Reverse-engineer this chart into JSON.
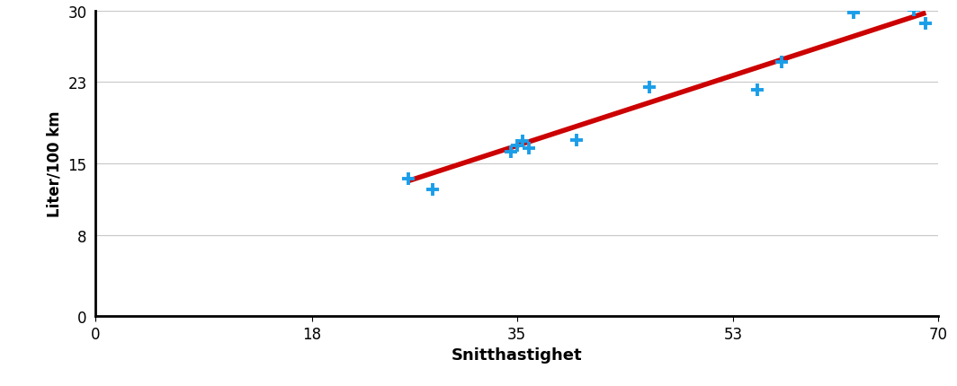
{
  "x_data": [
    26,
    28,
    34.5,
    35,
    35.5,
    36,
    40,
    46,
    55,
    57,
    63,
    68,
    69
  ],
  "y_data": [
    13.5,
    12.5,
    16.2,
    16.8,
    17.2,
    16.5,
    17.3,
    22.5,
    22.2,
    25.0,
    29.8,
    30.1,
    28.8
  ],
  "trend_x": [
    26,
    69
  ],
  "trend_y": [
    13.3,
    29.8
  ],
  "xlabel": "Snitthastighet",
  "ylabel": "Liter/100 km",
  "xlim": [
    0,
    70
  ],
  "ylim": [
    0,
    30
  ],
  "xticks": [
    0,
    18,
    35,
    53,
    70
  ],
  "yticks": [
    0,
    8,
    15,
    23,
    30
  ],
  "marker_color": "#1B9EE8",
  "trend_color": "#CC0000",
  "bg_color": "#FFFFFF",
  "grid_color": "#C8C8C8",
  "marker_size": 100,
  "trend_linewidth": 4.0,
  "xlabel_fontsize": 13,
  "ylabel_fontsize": 12,
  "tick_fontsize": 12
}
